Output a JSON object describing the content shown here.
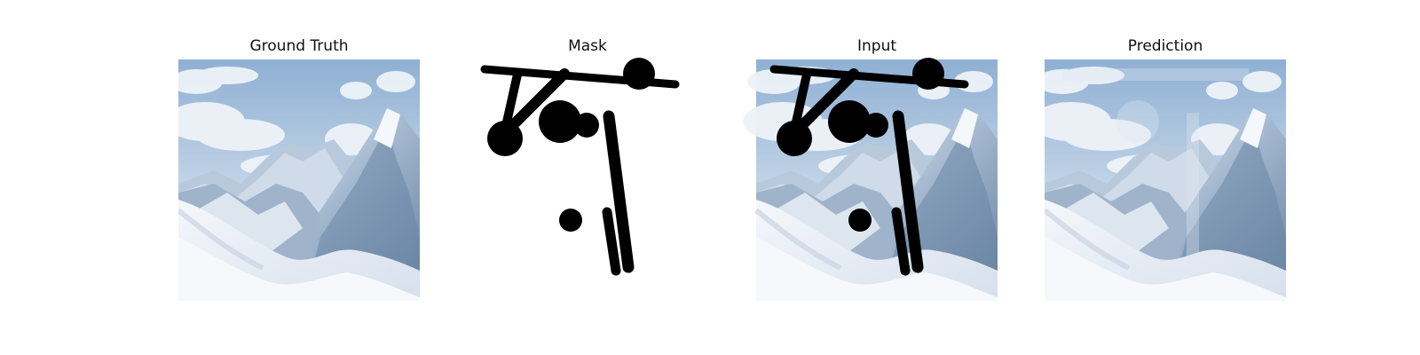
{
  "panels": [
    {
      "title": "Ground Truth"
    },
    {
      "title": "Mask"
    },
    {
      "title": "Input"
    },
    {
      "title": "Prediction"
    }
  ],
  "colors": {
    "sky": "#a9c2dc",
    "cloud": "#eef3f8",
    "snow": "#f1f4f8",
    "rock": "#5f7b9a",
    "shadow": "#aebfd4",
    "mask": "#000000"
  }
}
